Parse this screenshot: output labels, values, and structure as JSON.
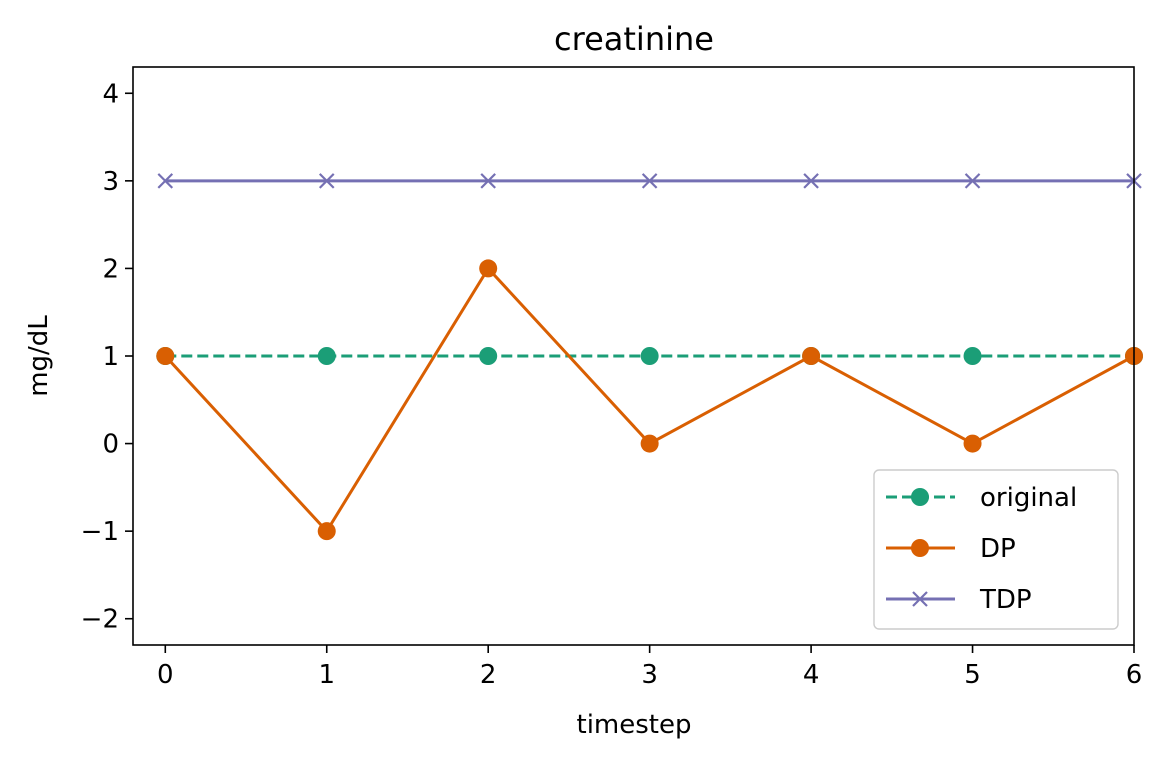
{
  "chart_data": {
    "type": "line",
    "title": "creatinine",
    "xlabel": "timestep",
    "ylabel": "mg/dL",
    "xlim": [
      -0.2,
      6
    ],
    "ylim": [
      -2.3,
      4.3
    ],
    "xticks": [
      "0",
      "1",
      "2",
      "3",
      "4",
      "5",
      "6"
    ],
    "yticks": [
      "−2",
      "−1",
      "0",
      "1",
      "2",
      "3",
      "4"
    ],
    "x": [
      0,
      1,
      2,
      3,
      4,
      5,
      6
    ],
    "grid": false,
    "legend_position": "lower-right",
    "series": [
      {
        "name": "original",
        "values": [
          1,
          1,
          1,
          1,
          1,
          1,
          1
        ],
        "color": "#1b9e77",
        "line_style": "dashed",
        "marker": "circle"
      },
      {
        "name": "DP",
        "values": [
          1,
          -1,
          2,
          0,
          1,
          0,
          1
        ],
        "color": "#d95f02",
        "line_style": "solid",
        "marker": "circle"
      },
      {
        "name": "TDP",
        "values": [
          3,
          3,
          3,
          3,
          3,
          3,
          3
        ],
        "color": "#7570b3",
        "line_style": "solid",
        "marker": "x"
      }
    ]
  }
}
